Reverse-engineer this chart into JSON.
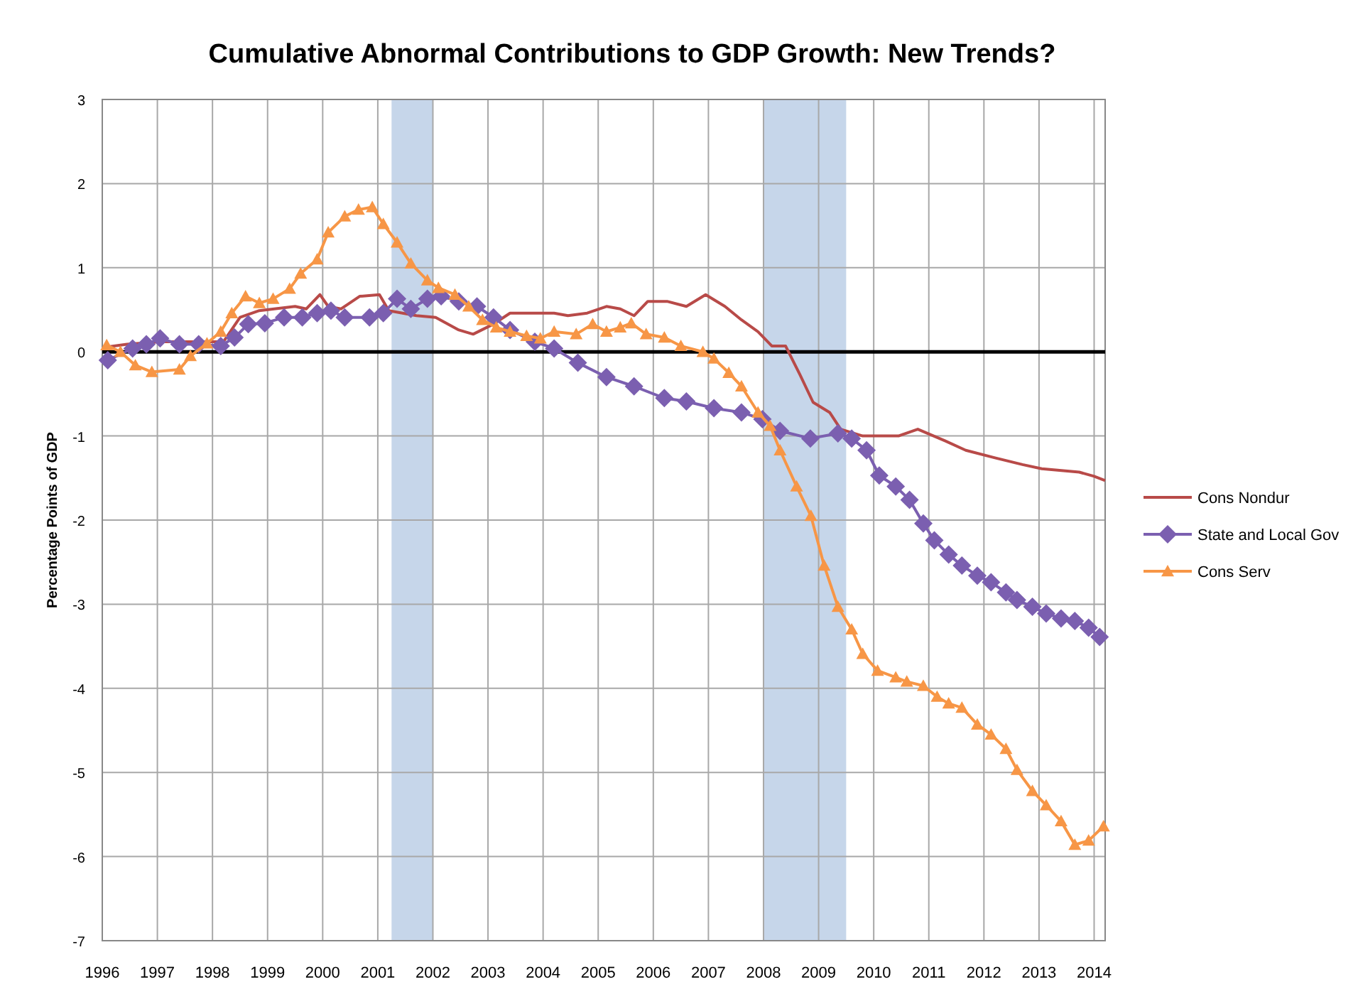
{
  "chart_data": {
    "type": "line",
    "title": "Cumulative Abnormal Contributions to GDP Growth: New Trends?",
    "ylabel": "Percentage Points of GDP",
    "xlim": [
      1996,
      2014.2
    ],
    "xticks": [
      1996,
      1997,
      1998,
      1999,
      2000,
      2001,
      2002,
      2003,
      2004,
      2005,
      2006,
      2007,
      2008,
      2009,
      2010,
      2011,
      2012,
      2013,
      2014
    ],
    "ylim": [
      -7,
      3
    ],
    "yticks": [
      -7,
      -6,
      -5,
      -4,
      -3,
      -2,
      -1,
      0,
      1,
      2,
      3
    ],
    "grid": true,
    "legend": "right",
    "ref_lines": [
      {
        "axis": "y",
        "value": 0,
        "color": "#000000"
      }
    ],
    "bands": [
      {
        "axis": "x",
        "from": 2001.25,
        "to": 2002,
        "color": "#c6d6ea"
      },
      {
        "axis": "x",
        "from": 2008,
        "to": 2009.5,
        "color": "#c6d6ea"
      }
    ],
    "series": [
      {
        "name": "Cons Nondur",
        "color": "#b84a48",
        "marker": "none",
        "x": [
          1996,
          1996.45,
          1997.05,
          1997.7,
          1998.2,
          1998.5,
          1998.85,
          1999.5,
          1999.7,
          1999.95,
          2000.1,
          2000.33,
          2000.67,
          2001.03,
          2001.2,
          2001.7,
          2002.05,
          2002.47,
          2002.73,
          2003.1,
          2003.4,
          2004.2,
          2004.45,
          2004.8,
          2005.15,
          2005.4,
          2005.65,
          2005.9,
          2006.25,
          2006.6,
          2006.95,
          2007.3,
          2007.6,
          2007.9,
          2008.15,
          2008.4,
          2008.66,
          2008.9,
          2009.2,
          2009.4,
          2009.8,
          2010.45,
          2010.8,
          2011.3,
          2011.67,
          2012.2,
          2012.7,
          2013.05,
          2013.73,
          2014,
          2014.2
        ],
        "values": [
          0.05,
          0.09,
          0.12,
          0.12,
          0.12,
          0.41,
          0.49,
          0.54,
          0.51,
          0.68,
          0.54,
          0.51,
          0.66,
          0.68,
          0.49,
          0.43,
          0.41,
          0.26,
          0.21,
          0.33,
          0.46,
          0.46,
          0.43,
          0.46,
          0.54,
          0.51,
          0.43,
          0.6,
          0.6,
          0.54,
          0.68,
          0.54,
          0.38,
          0.24,
          0.07,
          0.07,
          -0.27,
          -0.6,
          -0.72,
          -0.92,
          -1.0,
          -1.0,
          -0.92,
          -1.06,
          -1.17,
          -1.26,
          -1.34,
          -1.39,
          -1.43,
          -1.48,
          -1.53
        ]
      },
      {
        "name": "State and Local Gov",
        "color": "#7b5fb0",
        "marker": "diamond",
        "x": [
          1996.1,
          1996.55,
          1996.8,
          1997.05,
          1997.4,
          1997.75,
          1998.15,
          1998.4,
          1998.65,
          1998.95,
          1999.3,
          1999.63,
          1999.9,
          2000.15,
          2000.4,
          2000.85,
          2001.1,
          2001.35,
          2001.6,
          2001.9,
          2002.15,
          2002.47,
          2002.8,
          2003.1,
          2003.4,
          2003.85,
          2004.2,
          2004.63,
          2005.15,
          2005.65,
          2006.2,
          2006.6,
          2007.1,
          2007.6,
          2007.98,
          2008.3,
          2008.85,
          2009.35,
          2009.6,
          2009.87,
          2010.1,
          2010.4,
          2010.65,
          2010.9,
          2011.1,
          2011.36,
          2011.6,
          2011.88,
          2012.13,
          2012.4,
          2012.6,
          2012.88,
          2013.13,
          2013.4,
          2013.65,
          2013.9,
          2014.1
        ],
        "values": [
          -0.1,
          0.04,
          0.09,
          0.16,
          0.09,
          0.09,
          0.07,
          0.17,
          0.33,
          0.34,
          0.41,
          0.41,
          0.46,
          0.49,
          0.41,
          0.41,
          0.46,
          0.63,
          0.51,
          0.63,
          0.66,
          0.6,
          0.54,
          0.41,
          0.26,
          0.12,
          0.04,
          -0.13,
          -0.3,
          -0.41,
          -0.55,
          -0.59,
          -0.67,
          -0.72,
          -0.8,
          -0.94,
          -1.03,
          -0.97,
          -1.03,
          -1.17,
          -1.47,
          -1.6,
          -1.76,
          -2.04,
          -2.24,
          -2.41,
          -2.54,
          -2.66,
          -2.74,
          -2.86,
          -2.95,
          -3.03,
          -3.11,
          -3.17,
          -3.2,
          -3.28,
          -3.39
        ]
      },
      {
        "name": "Cons Serv",
        "color": "#f79646",
        "marker": "triangle",
        "x": [
          1996.08,
          1996.33,
          1996.6,
          1996.9,
          1997.4,
          1997.6,
          1997.9,
          1998.15,
          1998.35,
          1998.6,
          1998.85,
          1999.1,
          1999.4,
          1999.6,
          1999.9,
          2000.1,
          2000.4,
          2000.65,
          2000.9,
          2001.1,
          2001.35,
          2001.6,
          2001.9,
          2002.1,
          2002.4,
          2002.65,
          2002.9,
          2003.15,
          2003.4,
          2003.7,
          2003.95,
          2004.2,
          2004.6,
          2004.9,
          2005.15,
          2005.4,
          2005.6,
          2005.87,
          2006.2,
          2006.5,
          2006.9,
          2007.1,
          2007.37,
          2007.6,
          2007.9,
          2008.12,
          2008.3,
          2008.6,
          2008.86,
          2009.1,
          2009.35,
          2009.6,
          2009.8,
          2010.07,
          2010.4,
          2010.6,
          2010.9,
          2011.15,
          2011.36,
          2011.6,
          2011.88,
          2012.13,
          2012.4,
          2012.6,
          2012.88,
          2013.13,
          2013.4,
          2013.65,
          2013.9,
          2014.17
        ],
        "values": [
          0.08,
          0,
          -0.16,
          -0.24,
          -0.21,
          -0.05,
          0.1,
          0.24,
          0.46,
          0.66,
          0.58,
          0.63,
          0.75,
          0.93,
          1.1,
          1.42,
          1.61,
          1.69,
          1.72,
          1.52,
          1.3,
          1.05,
          0.85,
          0.76,
          0.68,
          0.54,
          0.38,
          0.29,
          0.24,
          0.19,
          0.16,
          0.24,
          0.21,
          0.33,
          0.24,
          0.29,
          0.34,
          0.21,
          0.17,
          0.07,
          0,
          -0.08,
          -0.25,
          -0.41,
          -0.72,
          -0.88,
          -1.17,
          -1.6,
          -1.95,
          -2.54,
          -3.03,
          -3.3,
          -3.59,
          -3.79,
          -3.87,
          -3.92,
          -3.97,
          -4.1,
          -4.18,
          -4.23,
          -4.43,
          -4.55,
          -4.72,
          -4.97,
          -5.22,
          -5.39,
          -5.58,
          -5.86,
          -5.81,
          -5.64
        ]
      }
    ]
  }
}
